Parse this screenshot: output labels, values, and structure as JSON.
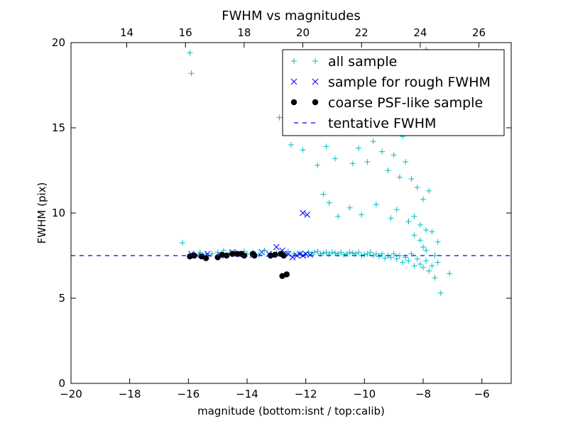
{
  "chart_data": {
    "type": "scatter",
    "title": "FWHM vs magnitudes",
    "xlabel": "magnitude (bottom:isnt / top:calib)",
    "ylabel": "FWHM (pix)",
    "xlim": [
      -20,
      -5
    ],
    "ylim": [
      0,
      20
    ],
    "x_ticks": [
      -20,
      -18,
      -16,
      -14,
      -12,
      -10,
      -8,
      -6
    ],
    "x_tick_labels": [
      "−20",
      "−18",
      "−16",
      "−14",
      "−12",
      "−10",
      "−8",
      "−6"
    ],
    "y_ticks": [
      0,
      5,
      10,
      15,
      20
    ],
    "y_tick_labels": [
      "0",
      "5",
      "10",
      "15",
      "20"
    ],
    "top_axis": {
      "ticks": [
        14,
        16,
        18,
        20,
        22,
        24,
        26
      ],
      "tick_labels": [
        "14",
        "16",
        "18",
        "20",
        "22",
        "24",
        "26"
      ],
      "offset": 32.1
    },
    "legend_position": "upper-right",
    "grid": false,
    "series": [
      {
        "name": "all sample",
        "marker": "+",
        "color": "#00bfbf",
        "x": [
          -16.2,
          -15.95,
          -15.9,
          -15.8,
          -15.6,
          -15.5,
          -15.4,
          -15.2,
          -15.0,
          -14.8,
          -14.6,
          -14.4,
          -14.3,
          -14.1,
          -14.0,
          -13.8,
          -13.6,
          -13.4,
          -13.2,
          -13.0,
          -12.8,
          -12.7,
          -12.6,
          -12.4,
          -12.2,
          -12.0,
          -11.9,
          -11.8,
          -11.7,
          -11.6,
          -11.5,
          -11.4,
          -11.3,
          -11.2,
          -11.1,
          -11.0,
          -10.9,
          -10.8,
          -10.7,
          -10.6,
          -10.5,
          -10.4,
          -10.3,
          -10.2,
          -10.1,
          -10.0,
          -9.9,
          -9.8,
          -9.7,
          -9.6,
          -9.5,
          -9.4,
          -9.3,
          -9.2,
          -9.1,
          -9.0,
          -8.9,
          -8.8,
          -8.7,
          -8.6,
          -8.5,
          -8.4,
          -8.3,
          -8.2,
          -8.1,
          -8.0,
          -7.9,
          -7.8,
          -7.7,
          -7.6,
          -7.5,
          -7.4,
          -7.1,
          -12.9,
          -12.5,
          -12.1,
          -11.6,
          -11.3,
          -11.0,
          -10.7,
          -10.4,
          -10.2,
          -9.9,
          -9.7,
          -9.4,
          -9.2,
          -9.0,
          -8.8,
          -8.6,
          -8.4,
          -8.2,
          -8.0,
          -7.8,
          -9.3,
          -9.1,
          -8.7,
          -8.5,
          -8.3,
          -8.1,
          -7.9,
          -11.4,
          -11.2,
          -10.9,
          -10.5,
          -10.1,
          -9.6,
          -9.1,
          -8.9,
          -8.5,
          -8.3,
          -8.1,
          -7.9,
          -7.7,
          -7.5,
          -8.5,
          -8.3,
          -8.1,
          -8.0,
          -7.9,
          -7.6
        ],
        "y": [
          8.25,
          19.4,
          18.2,
          7.55,
          7.7,
          7.5,
          7.6,
          7.6,
          7.7,
          7.8,
          7.65,
          7.7,
          7.55,
          7.75,
          7.6,
          7.7,
          7.55,
          7.8,
          7.6,
          7.7,
          7.7,
          7.6,
          7.75,
          7.6,
          7.65,
          7.55,
          7.7,
          7.6,
          7.7,
          7.75,
          7.6,
          7.65,
          7.7,
          7.6,
          7.7,
          7.65,
          7.6,
          7.7,
          7.55,
          7.6,
          7.7,
          7.65,
          7.6,
          7.7,
          7.5,
          7.55,
          7.6,
          7.7,
          7.5,
          7.6,
          7.45,
          7.6,
          7.35,
          7.5,
          7.4,
          7.6,
          7.3,
          7.5,
          7.1,
          7.4,
          7.2,
          7.6,
          6.9,
          7.3,
          7.0,
          6.8,
          7.2,
          6.6,
          6.9,
          6.2,
          7.1,
          5.3,
          6.45,
          15.6,
          14.0,
          13.7,
          12.8,
          13.9,
          13.2,
          14.9,
          12.9,
          13.8,
          13.0,
          14.2,
          13.6,
          12.5,
          13.4,
          12.1,
          13.0,
          12.0,
          11.5,
          10.8,
          11.3,
          15.5,
          16.0,
          14.5,
          17.5,
          18.5,
          16.8,
          19.6,
          11.1,
          10.6,
          9.8,
          10.3,
          9.9,
          10.5,
          9.7,
          10.2,
          9.5,
          9.8,
          9.3,
          9.0,
          8.9,
          8.3,
          9.5,
          8.7,
          8.4,
          8.0,
          7.8,
          7.5
        ]
      },
      {
        "name": "sample for rough FWHM",
        "marker": "x",
        "color": "#0000ff",
        "x": [
          -15.9,
          -15.7,
          -15.35,
          -14.9,
          -14.5,
          -14.2,
          -13.8,
          -13.5,
          -13.25,
          -13.0,
          -12.8,
          -12.6,
          -12.45,
          -12.3,
          -12.2,
          -12.1,
          -12.0,
          -11.85,
          -12.1,
          -11.95
        ],
        "y": [
          7.6,
          7.5,
          7.6,
          7.5,
          7.7,
          7.6,
          7.55,
          7.7,
          7.6,
          8.0,
          7.8,
          7.6,
          7.4,
          7.5,
          7.6,
          7.5,
          7.6,
          7.55,
          10.0,
          9.9
        ]
      },
      {
        "name": "coarse PSF-like sample",
        "marker": "o",
        "color": "#000000",
        "x": [
          -15.95,
          -15.8,
          -15.55,
          -15.4,
          -15.0,
          -14.85,
          -14.7,
          -14.5,
          -14.35,
          -14.2,
          -14.1,
          -13.8,
          -13.75,
          -13.2,
          -13.05,
          -12.85,
          -12.75,
          -12.8,
          -12.65
        ],
        "y": [
          7.45,
          7.5,
          7.45,
          7.35,
          7.4,
          7.55,
          7.5,
          7.6,
          7.6,
          7.6,
          7.5,
          7.6,
          7.5,
          7.5,
          7.55,
          7.6,
          7.5,
          6.3,
          6.4
        ]
      },
      {
        "name": "tentative FWHM",
        "type": "hline",
        "style": "dashed",
        "color": "#0000ff",
        "y": 7.5
      }
    ]
  }
}
